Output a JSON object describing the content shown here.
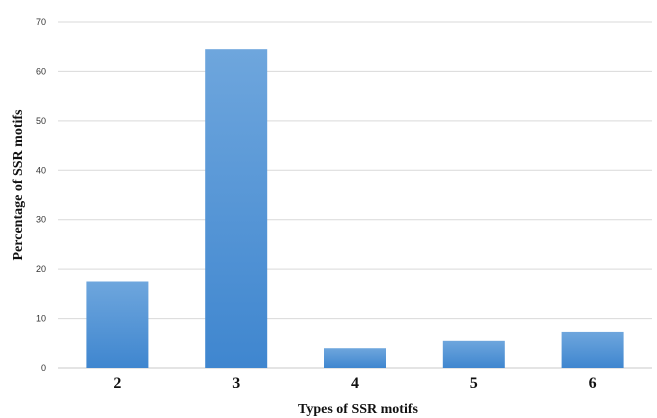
{
  "chart_data": {
    "type": "bar",
    "title": "",
    "xlabel": "Types of SSR motifs",
    "ylabel": "Percentage of SSR motifs",
    "categories": [
      "2",
      "3",
      "4",
      "5",
      "6"
    ],
    "values": [
      17.5,
      64.5,
      4.0,
      5.5,
      7.3
    ],
    "ylim": [
      0,
      70
    ],
    "yticks": [
      "0",
      "10",
      "20",
      "30",
      "40",
      "50",
      "60",
      "70"
    ],
    "grid": true,
    "legend": "none",
    "bar_color_top": "#6ea6dd",
    "bar_color_bottom": "#3f86cf"
  }
}
